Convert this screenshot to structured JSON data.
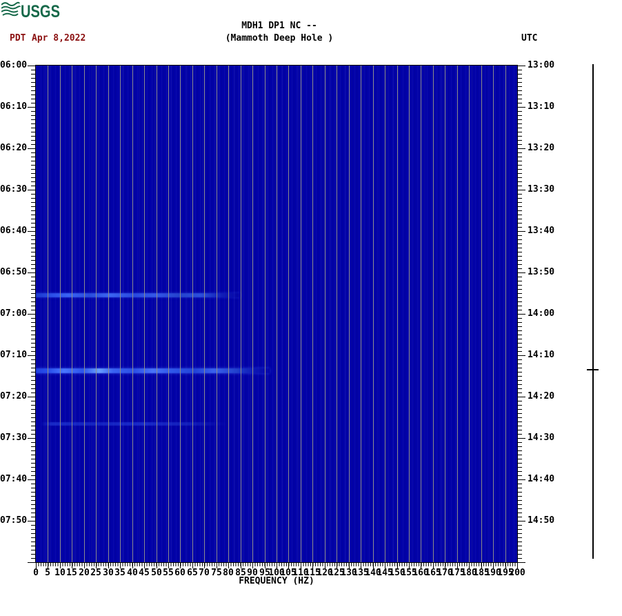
{
  "header": {
    "logo": "USGS",
    "title_line1": "MDH1 DP1 NC --",
    "title_line2": "(Mammoth Deep Hole )",
    "tz_left": "PDT",
    "date": "Apr 8,2022",
    "tz_right": "UTC"
  },
  "colors": {
    "plot_background": "#0202A8",
    "gridline": "#8C8C8C",
    "header_date_red": "#8B1010",
    "usgs_green": "#17694A",
    "axis_black": "#000000",
    "event_bright_blue": "#4a78ff"
  },
  "x_axis": {
    "label": "FREQUENCY (HZ)",
    "min_hz": 0,
    "max_hz": 200,
    "major_step_hz": 5,
    "minor_step_hz": 1,
    "tick_labels": [
      "0",
      "5",
      "10",
      "15",
      "20",
      "25",
      "30",
      "35",
      "40",
      "45",
      "50",
      "55",
      "60",
      "65",
      "70",
      "75",
      "80",
      "85",
      "90",
      "95",
      "100",
      "105",
      "110",
      "115",
      "120",
      "125",
      "130",
      "135",
      "140",
      "145",
      "150",
      "155",
      "160",
      "165",
      "170",
      "175",
      "180",
      "185",
      "190",
      "195",
      "200"
    ]
  },
  "y_axis_left": {
    "timezone": "PDT",
    "major_step_min": 10,
    "minor_step_min": 1,
    "tick_labels": [
      "06:00",
      "06:10",
      "06:20",
      "06:30",
      "06:40",
      "06:50",
      "07:00",
      "07:10",
      "07:20",
      "07:30",
      "07:40",
      "07:50"
    ]
  },
  "y_axis_right": {
    "timezone": "UTC",
    "major_step_min": 10,
    "minor_step_min": 1,
    "tick_labels": [
      "13:00",
      "13:10",
      "13:20",
      "13:30",
      "13:40",
      "13:50",
      "14:00",
      "14:10",
      "14:20",
      "14:30",
      "14:40",
      "14:50"
    ]
  },
  "chart_data": {
    "type": "heatmap",
    "subtype": "seismic-spectrogram",
    "title": "MDH1 DP1 NC -- (Mammoth Deep Hole )",
    "xlabel": "FREQUENCY (HZ)",
    "x_range_hz": [
      0,
      200
    ],
    "x_gridline_step_hz": 5,
    "y_left_pdt_range": [
      "06:00",
      "08:00"
    ],
    "y_right_utc_range": [
      "13:00",
      "15:00"
    ],
    "y_major_step_min": 10,
    "background_level": "quiet low-amplitude (uniform dark blue)",
    "grid_on": true,
    "events": [
      {
        "time_pdt": "06:55:30",
        "time_utc": "13:55:30",
        "freq_span_hz": [
          0,
          85
        ],
        "intensity": "moderate",
        "description": "bright-blue horizontal band across 0-85 Hz"
      },
      {
        "time_pdt": "07:13:48",
        "time_utc": "14:13:48",
        "freq_span_hz": [
          0,
          97
        ],
        "intensity": "strong",
        "description": "brightest band, hotspot near 25-30 Hz"
      },
      {
        "time_pdt": "07:26:42",
        "time_utc": "14:26:42",
        "freq_span_hz": [
          2,
          80
        ],
        "intensity": "faint",
        "description": "very faint band"
      }
    ],
    "scale_bar": {
      "marker_time_utc": "14:14"
    }
  }
}
